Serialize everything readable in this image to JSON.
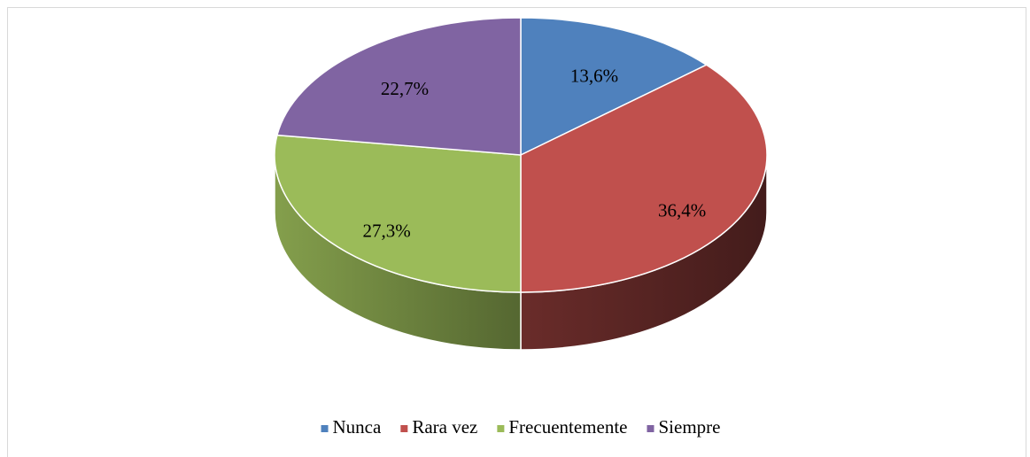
{
  "chart_data": {
    "type": "pie",
    "categories": [
      "Nunca",
      "Rara vez",
      "Frecuentemente",
      "Siempre"
    ],
    "values": [
      13.6,
      36.4,
      27.3,
      22.7
    ],
    "value_labels": [
      "13,6%",
      "36,4%",
      "27,3%",
      "22,7%"
    ],
    "colors": [
      "#4f81bd",
      "#c0504d",
      "#9bbb59",
      "#8064a2"
    ],
    "legend": "bottom"
  }
}
